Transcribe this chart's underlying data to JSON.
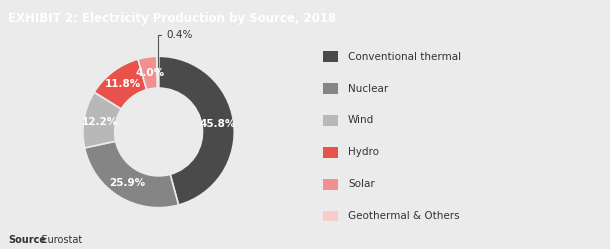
{
  "title": "EXHIBIT 2: Electricity Production by Source, 2018",
  "title_bg_color": "#1a1a1a",
  "title_text_color": "#ffffff",
  "bg_color": "#ebebeb",
  "labels": [
    "Conventional thermal",
    "Nuclear",
    "Wind",
    "Hydro",
    "Solar",
    "Geothermal & Others"
  ],
  "values": [
    45.8,
    25.9,
    12.2,
    11.8,
    4.0,
    0.4
  ],
  "colors": [
    "#4a4a4a",
    "#858585",
    "#b8b8b8",
    "#e8524a",
    "#f09090",
    "#f8ccc8"
  ],
  "pct_labels": [
    "45.8%",
    "25.9%",
    "12.2%",
    "11.8%",
    "4.0%",
    "0.4%"
  ],
  "source_bold": "Source",
  "source_rest": ": Eurostat",
  "donut_width": 0.42,
  "startangle": 90
}
